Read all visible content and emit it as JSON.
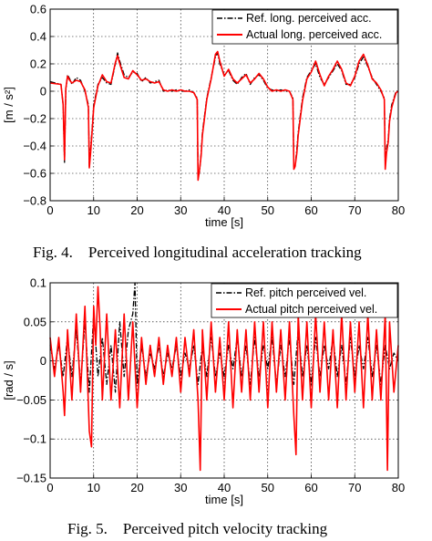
{
  "chart_data": [
    {
      "type": "line",
      "caption": "Fig. 4.    Perceived longitudinal acceleration tracking",
      "xlabel": "time [s]",
      "ylabel": "[m / s²]",
      "xlim": [
        0,
        80
      ],
      "ylim": [
        -0.8,
        0.6
      ],
      "xticks": [
        0,
        10,
        20,
        30,
        40,
        50,
        60,
        70,
        80
      ],
      "yticks": [
        -0.8,
        -0.6,
        -0.4,
        -0.2,
        0,
        0.2,
        0.4,
        0.6
      ],
      "ytick_labels": [
        "−0.8",
        "−0.6",
        "−0.4",
        "−0.2",
        "0",
        "0.2",
        "0.4",
        "0.6"
      ],
      "grid": true,
      "legend_position": "top-right",
      "series": [
        {
          "name": "Ref. long. perceived acc.",
          "color": "#000000",
          "style": "dashdot",
          "x": [
            0,
            2.5,
            3,
            3.3,
            3.6,
            4,
            4.5,
            5,
            6,
            7,
            8,
            8.8,
            9,
            9.3,
            9.6,
            10,
            11,
            12,
            13,
            14,
            15,
            15.5,
            16,
            17,
            18,
            19,
            20,
            21,
            22,
            23,
            24,
            25,
            26,
            27,
            28,
            29,
            30,
            31,
            32,
            33,
            33.8,
            34,
            34.3,
            34.7,
            35,
            36,
            37,
            38,
            38.5,
            39,
            40,
            41,
            42,
            43,
            44,
            45,
            46,
            47,
            48,
            49,
            50,
            51,
            52,
            53,
            54,
            55,
            55.8,
            56,
            56.3,
            56.7,
            57,
            58,
            59,
            60,
            61,
            62,
            63,
            64,
            65,
            66,
            67,
            68,
            69,
            70,
            71,
            72,
            73,
            74,
            75,
            76,
            76.8,
            77,
            77.3,
            77.7,
            78,
            78.5,
            79,
            79.5,
            80
          ],
          "y": [
            0.07,
            0.05,
            -0.1,
            -0.52,
            0.0,
            0.12,
            0.09,
            0.05,
            0.1,
            0.08,
            0.0,
            -0.1,
            -0.55,
            -0.42,
            -0.3,
            -0.1,
            0.05,
            0.1,
            0.06,
            0.05,
            0.2,
            0.28,
            0.22,
            0.12,
            0.1,
            0.14,
            0.13,
            0.07,
            0.1,
            0.06,
            0.07,
            0.08,
            0.0,
            0.01,
            0.0,
            0.01,
            0.0,
            0.0,
            0.01,
            -0.01,
            -0.05,
            -0.62,
            -0.6,
            -0.45,
            -0.3,
            -0.05,
            0.1,
            0.25,
            0.28,
            0.2,
            0.12,
            0.15,
            0.08,
            0.05,
            0.1,
            0.13,
            0.05,
            0.1,
            0.12,
            0.08,
            0.02,
            0.01,
            0.0,
            0.01,
            0.0,
            0.0,
            -0.05,
            -0.55,
            -0.55,
            -0.42,
            -0.3,
            -0.05,
            0.1,
            0.15,
            0.2,
            0.1,
            0.05,
            0.1,
            0.15,
            0.2,
            0.15,
            0.05,
            0.05,
            0.1,
            0.2,
            0.25,
            0.18,
            0.1,
            0.05,
            0.0,
            -0.05,
            -0.55,
            -0.42,
            -0.35,
            -0.2,
            -0.1,
            -0.05,
            0.0,
            0.0
          ]
        },
        {
          "name": "Actual long. perceived acc.",
          "color": "#ff0000",
          "style": "solid",
          "x": [
            0,
            2.5,
            3,
            3.3,
            3.6,
            4,
            4.5,
            5,
            6,
            7,
            8,
            8.8,
            9,
            9.3,
            9.6,
            10,
            11,
            12,
            13,
            14,
            15,
            15.5,
            16,
            17,
            18,
            19,
            20,
            21,
            22,
            23,
            24,
            25,
            26,
            27,
            28,
            29,
            30,
            31,
            32,
            33,
            33.8,
            34,
            34.3,
            34.7,
            35,
            36,
            37,
            38,
            38.5,
            39,
            40,
            41,
            42,
            43,
            44,
            45,
            46,
            47,
            48,
            49,
            50,
            51,
            52,
            53,
            54,
            55,
            55.8,
            56,
            56.3,
            56.7,
            57,
            58,
            59,
            60,
            61,
            62,
            63,
            64,
            65,
            66,
            67,
            68,
            69,
            70,
            71,
            72,
            73,
            74,
            75,
            76,
            76.8,
            77,
            77.3,
            77.7,
            78,
            78.5,
            79,
            79.5,
            80
          ],
          "y": [
            0.06,
            0.05,
            -0.1,
            -0.5,
            0.02,
            0.11,
            0.08,
            0.06,
            0.08,
            0.07,
            0.01,
            -0.12,
            -0.56,
            -0.45,
            -0.32,
            -0.12,
            0.04,
            0.12,
            0.07,
            0.06,
            0.21,
            0.26,
            0.2,
            0.1,
            0.09,
            0.15,
            0.12,
            0.08,
            0.09,
            0.07,
            0.06,
            0.07,
            0.01,
            0.0,
            0.01,
            0.0,
            0.01,
            0.0,
            0.0,
            -0.01,
            -0.06,
            -0.65,
            -0.58,
            -0.47,
            -0.32,
            -0.06,
            0.09,
            0.27,
            0.29,
            0.22,
            0.11,
            0.16,
            0.09,
            0.06,
            0.09,
            0.12,
            0.06,
            0.09,
            0.13,
            0.09,
            0.03,
            0.0,
            0.01,
            0.0,
            0.01,
            0.0,
            -0.06,
            -0.57,
            -0.55,
            -0.45,
            -0.32,
            -0.07,
            0.09,
            0.14,
            0.22,
            0.12,
            0.04,
            0.11,
            0.16,
            0.22,
            0.16,
            0.06,
            0.04,
            0.11,
            0.22,
            0.27,
            0.19,
            0.09,
            0.06,
            0.01,
            -0.06,
            -0.57,
            -0.45,
            -0.37,
            -0.22,
            -0.12,
            -0.06,
            -0.01,
            0.0
          ]
        }
      ]
    },
    {
      "type": "line",
      "caption": "Fig. 5.    Perceived pitch velocity tracking",
      "xlabel": "time [s]",
      "ylabel": "[rad / s]",
      "xlim": [
        0,
        80
      ],
      "ylim": [
        -0.15,
        0.1
      ],
      "xticks": [
        0,
        10,
        20,
        30,
        40,
        50,
        60,
        70,
        80
      ],
      "yticks": [
        -0.15,
        -0.1,
        -0.05,
        0,
        0.05,
        0.1
      ],
      "ytick_labels": [
        "−0.15",
        "−0.1",
        "−0.05",
        "0",
        "0.05",
        "0.1"
      ],
      "grid": true,
      "legend_position": "top-right",
      "series": [
        {
          "name": "Ref. pitch perceived vel.",
          "color": "#000000",
          "style": "dashdot",
          "x": [
            0,
            1,
            2,
            3,
            4,
            5,
            6,
            7,
            8,
            9,
            10,
            11,
            12,
            13,
            14,
            15,
            16,
            17,
            18,
            19,
            19.5,
            20,
            21,
            22,
            23,
            24,
            25,
            26,
            27,
            28,
            29,
            30,
            31,
            32,
            33,
            34,
            35,
            36,
            37,
            38,
            39,
            40,
            41,
            42,
            43,
            44,
            45,
            46,
            47,
            48,
            49,
            50,
            51,
            52,
            53,
            54,
            55,
            56,
            57,
            58,
            59,
            60,
            61,
            62,
            63,
            64,
            65,
            66,
            67,
            68,
            69,
            70,
            71,
            72,
            73,
            74,
            75,
            76,
            77,
            78,
            79,
            80
          ],
          "y": [
            0.02,
            -0.01,
            0.02,
            -0.02,
            0.03,
            -0.02,
            0.04,
            -0.03,
            0.05,
            -0.04,
            0.06,
            -0.02,
            0.03,
            -0.03,
            0.02,
            -0.04,
            0.05,
            -0.02,
            0.04,
            0.06,
            0.1,
            -0.03,
            0.02,
            -0.02,
            0.01,
            -0.01,
            0.02,
            -0.02,
            0.01,
            -0.01,
            0.02,
            -0.02,
            0.01,
            -0.01,
            0.02,
            -0.03,
            0.02,
            -0.02,
            0.03,
            -0.02,
            0.01,
            -0.02,
            0.02,
            -0.01,
            0.03,
            -0.02,
            0.02,
            -0.03,
            0.03,
            -0.02,
            0.02,
            -0.01,
            0.03,
            -0.03,
            0.02,
            -0.02,
            0.03,
            -0.03,
            0.04,
            -0.02,
            0.02,
            -0.03,
            0.03,
            -0.02,
            0.02,
            -0.01,
            0.03,
            -0.02,
            0.02,
            -0.03,
            0.03,
            -0.02,
            0.02,
            -0.01,
            0.03,
            -0.02,
            0.02,
            -0.03,
            0.02,
            -0.01,
            0.01,
            0.0
          ]
        },
        {
          "name": "Actual pitch perceived vel.",
          "color": "#ff0000",
          "style": "solid",
          "x": [
            0,
            1,
            2,
            3,
            3.3,
            4,
            5,
            6,
            7,
            8,
            9,
            9.5,
            10,
            10.5,
            11,
            11.5,
            12,
            13,
            14,
            15,
            16,
            17,
            18,
            19,
            20,
            21,
            22,
            23,
            24,
            25,
            26,
            27,
            28,
            29,
            30,
            31,
            32,
            33,
            34,
            34.5,
            35,
            36,
            37,
            38,
            39,
            40,
            41,
            42,
            43,
            44,
            45,
            46,
            47,
            48,
            49,
            50,
            51,
            52,
            53,
            54,
            55,
            56,
            56.5,
            57,
            58,
            59,
            60,
            61,
            62,
            63,
            64,
            65,
            66,
            67,
            68,
            69,
            70,
            71,
            72,
            73,
            74,
            75,
            76,
            77,
            77.5,
            78,
            79,
            80
          ],
          "y": [
            0.03,
            -0.02,
            0.03,
            -0.04,
            -0.07,
            0.04,
            -0.05,
            0.06,
            -0.04,
            0.07,
            -0.09,
            -0.11,
            0.07,
            0.02,
            0.095,
            0.04,
            -0.05,
            0.06,
            -0.05,
            0.04,
            -0.06,
            0.06,
            -0.05,
            0.05,
            -0.06,
            0.03,
            -0.03,
            0.02,
            -0.02,
            0.03,
            -0.03,
            0.02,
            -0.02,
            0.03,
            -0.04,
            0.03,
            -0.02,
            0.04,
            -0.05,
            -0.14,
            0.04,
            -0.05,
            0.05,
            -0.04,
            0.03,
            -0.05,
            0.05,
            -0.06,
            0.04,
            -0.04,
            0.04,
            -0.05,
            0.05,
            -0.04,
            0.05,
            -0.06,
            0.05,
            -0.04,
            0.04,
            -0.05,
            0.05,
            -0.07,
            -0.12,
            0.06,
            -0.05,
            0.05,
            -0.06,
            0.06,
            -0.04,
            0.05,
            -0.05,
            0.04,
            -0.06,
            0.06,
            -0.05,
            0.05,
            -0.04,
            0.05,
            -0.06,
            0.06,
            -0.05,
            0.04,
            -0.05,
            0.06,
            -0.14,
            0.05,
            -0.04,
            0.02
          ]
        }
      ]
    }
  ]
}
